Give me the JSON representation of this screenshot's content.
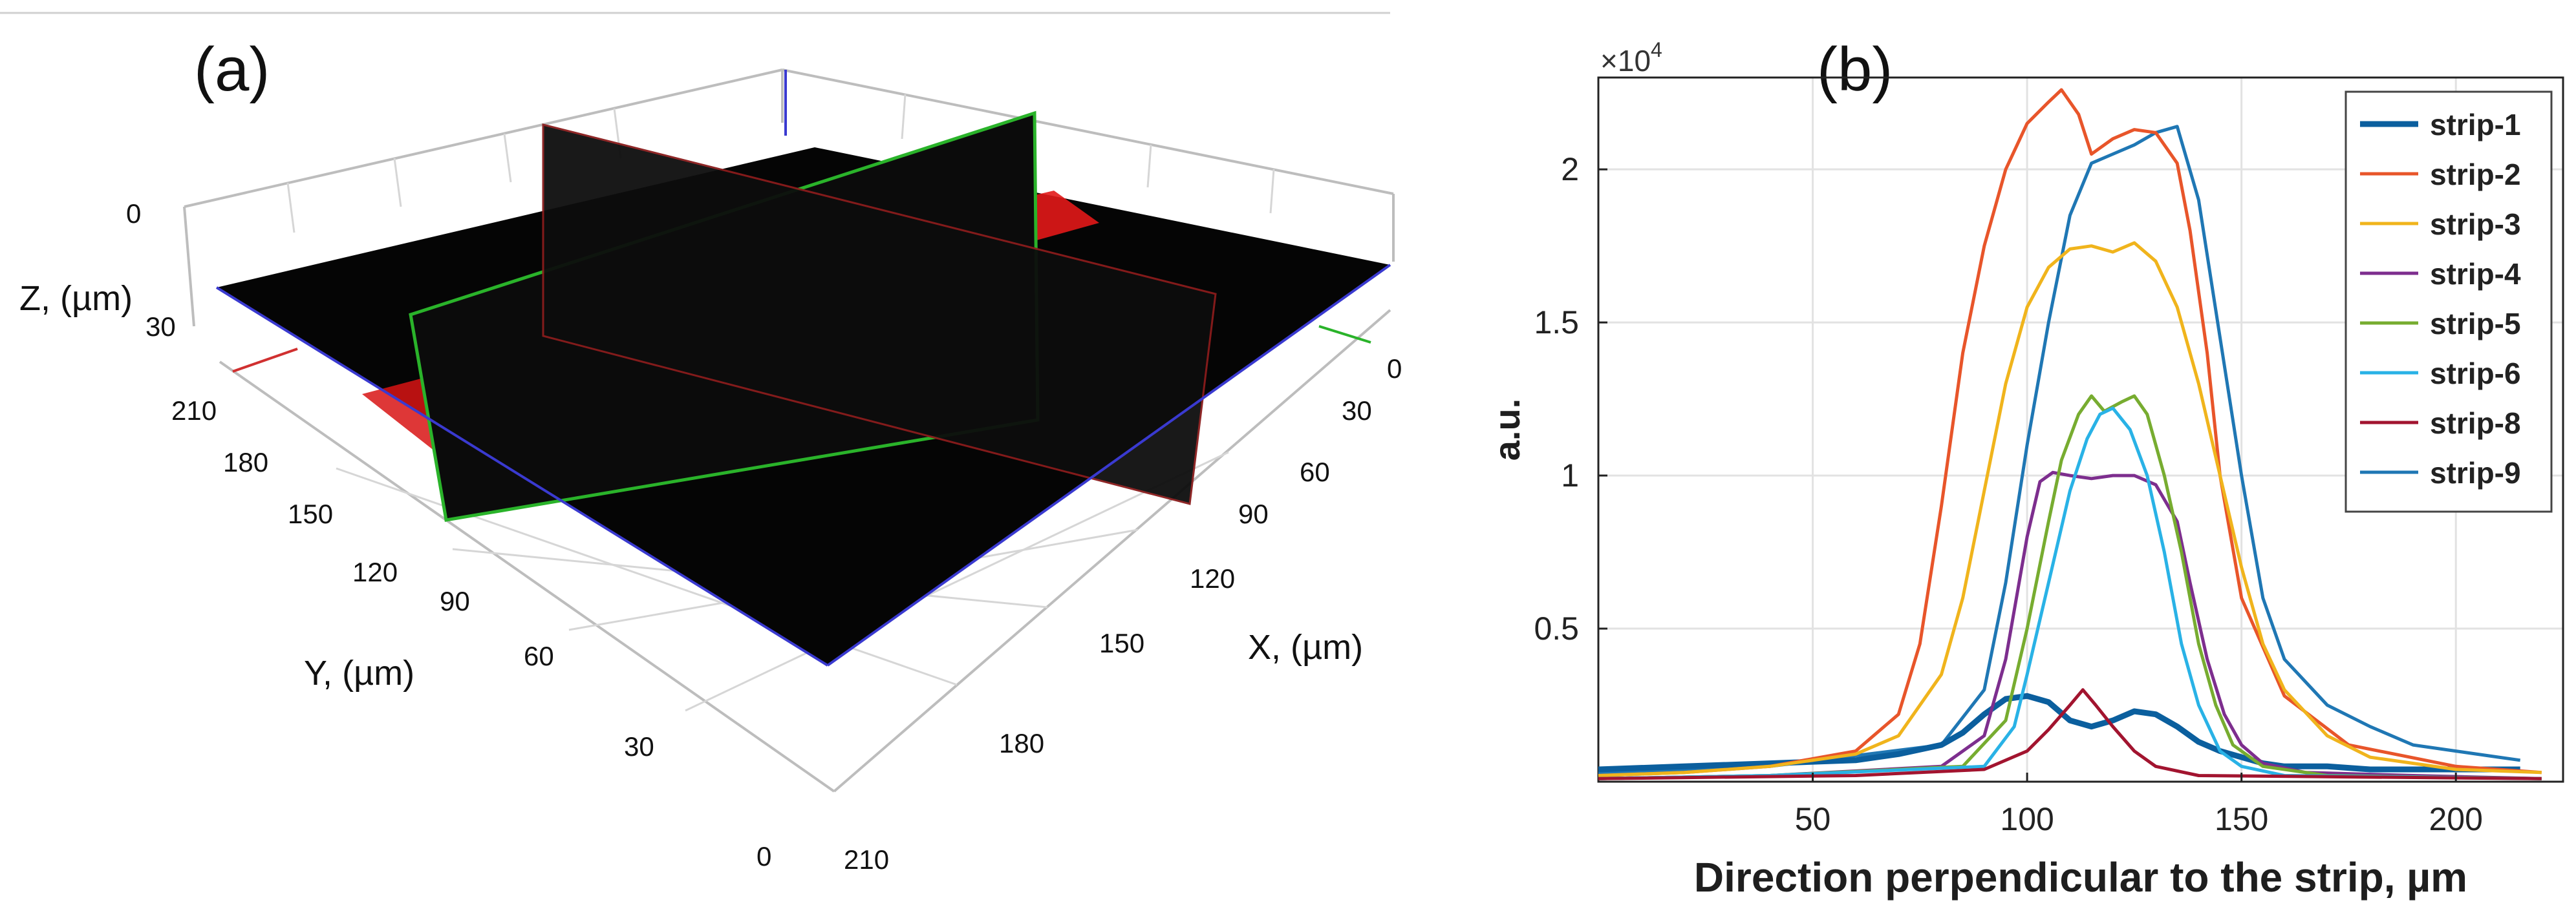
{
  "panel_a": {
    "label": "(a)",
    "z_label": "Z, (µm)",
    "y_label": "Y, (µm)",
    "x_label": "X, (µm)",
    "z_ticks": [
      "0",
      "30"
    ],
    "y_ticks": [
      "210",
      "180",
      "150",
      "120",
      "90",
      "60",
      "30",
      "0"
    ],
    "x_ticks": [
      "0",
      "30",
      "60",
      "90",
      "120",
      "150",
      "180",
      "210"
    ]
  },
  "chart_data": {
    "type": "line",
    "panel_label": "(b)",
    "title": "",
    "xlabel": "Direction perpendicular to the strip, µm",
    "ylabel": "a.u.",
    "exponent_label": "×10",
    "exponent_power": "4",
    "xlim": [
      0,
      225
    ],
    "ylim": [
      0,
      2.3
    ],
    "x_ticks": [
      50,
      100,
      150,
      200
    ],
    "y_ticks": [
      0.5,
      1,
      1.5,
      2
    ],
    "x_tick_labels": [
      "50",
      "100",
      "150",
      "200"
    ],
    "y_tick_labels": [
      "0.5",
      "1",
      "1.5",
      "2"
    ],
    "grid": true,
    "legend_position": "top-right",
    "series": [
      {
        "name": "strip-1",
        "color": "#0b5f9e",
        "width": 9,
        "x": [
          0,
          20,
          40,
          60,
          70,
          80,
          85,
          90,
          95,
          100,
          105,
          110,
          115,
          120,
          125,
          130,
          135,
          140,
          145,
          150,
          155,
          160,
          170,
          180,
          200,
          215
        ],
        "y": [
          0.04,
          0.05,
          0.06,
          0.07,
          0.09,
          0.12,
          0.16,
          0.22,
          0.27,
          0.28,
          0.26,
          0.2,
          0.18,
          0.2,
          0.23,
          0.22,
          0.18,
          0.13,
          0.1,
          0.08,
          0.06,
          0.05,
          0.05,
          0.04,
          0.04,
          0.04
        ]
      },
      {
        "name": "strip-2",
        "color": "#e8552a",
        "width": 5,
        "x": [
          0,
          20,
          40,
          60,
          70,
          75,
          80,
          85,
          90,
          95,
          100,
          105,
          108,
          112,
          115,
          120,
          125,
          130,
          135,
          138,
          142,
          145,
          150,
          160,
          175,
          200,
          220
        ],
        "y": [
          0.02,
          0.03,
          0.05,
          0.1,
          0.22,
          0.45,
          0.9,
          1.4,
          1.75,
          2.0,
          2.15,
          2.22,
          2.26,
          2.18,
          2.05,
          2.1,
          2.13,
          2.12,
          2.02,
          1.8,
          1.4,
          1.0,
          0.6,
          0.28,
          0.12,
          0.05,
          0.03
        ]
      },
      {
        "name": "strip-3",
        "color": "#f0b41c",
        "width": 5,
        "x": [
          0,
          20,
          40,
          60,
          70,
          80,
          85,
          90,
          95,
          100,
          105,
          110,
          115,
          120,
          125,
          130,
          135,
          140,
          145,
          150,
          155,
          160,
          170,
          180,
          200,
          220
        ],
        "y": [
          0.02,
          0.03,
          0.05,
          0.09,
          0.15,
          0.35,
          0.6,
          0.95,
          1.3,
          1.55,
          1.68,
          1.74,
          1.75,
          1.73,
          1.76,
          1.7,
          1.55,
          1.3,
          1.0,
          0.7,
          0.45,
          0.3,
          0.15,
          0.08,
          0.04,
          0.03
        ]
      },
      {
        "name": "strip-4",
        "color": "#7d2e8e",
        "width": 5,
        "x": [
          0,
          40,
          80,
          90,
          95,
          100,
          103,
          106,
          110,
          115,
          120,
          125,
          130,
          135,
          138,
          142,
          146,
          150,
          155,
          165,
          190,
          220
        ],
        "y": [
          0.01,
          0.02,
          0.05,
          0.15,
          0.4,
          0.8,
          0.98,
          1.01,
          1.0,
          0.99,
          1.0,
          1.0,
          0.97,
          0.85,
          0.65,
          0.4,
          0.22,
          0.12,
          0.06,
          0.03,
          0.02,
          0.01
        ]
      },
      {
        "name": "strip-5",
        "color": "#77ac30",
        "width": 5,
        "x": [
          0,
          40,
          85,
          95,
          100,
          105,
          108,
          112,
          115,
          118,
          122,
          125,
          128,
          132,
          136,
          140,
          144,
          148,
          155,
          170,
          220
        ],
        "y": [
          0.01,
          0.02,
          0.05,
          0.2,
          0.5,
          0.85,
          1.05,
          1.2,
          1.26,
          1.21,
          1.24,
          1.26,
          1.2,
          1.0,
          0.75,
          0.45,
          0.25,
          0.12,
          0.05,
          0.02,
          0.01
        ]
      },
      {
        "name": "strip-6",
        "color": "#29b2e6",
        "width": 5,
        "x": [
          0,
          40,
          90,
          97,
          100,
          105,
          110,
          114,
          117,
          120,
          124,
          128,
          132,
          136,
          140,
          145,
          150,
          160,
          220
        ],
        "y": [
          0.01,
          0.02,
          0.05,
          0.18,
          0.35,
          0.65,
          0.95,
          1.12,
          1.2,
          1.22,
          1.15,
          1.0,
          0.75,
          0.45,
          0.25,
          0.1,
          0.05,
          0.02,
          0.01
        ]
      },
      {
        "name": "strip-8",
        "color": "#a2142f",
        "width": 5,
        "x": [
          0,
          60,
          90,
          100,
          105,
          110,
          113,
          116,
          120,
          125,
          130,
          140,
          220
        ],
        "y": [
          0.01,
          0.02,
          0.04,
          0.1,
          0.17,
          0.25,
          0.3,
          0.25,
          0.18,
          0.1,
          0.05,
          0.02,
          0.01
        ]
      },
      {
        "name": "strip-9",
        "color": "#1f77b4",
        "width": 5,
        "x": [
          0,
          40,
          80,
          90,
          95,
          100,
          105,
          110,
          115,
          120,
          125,
          130,
          135,
          140,
          145,
          150,
          155,
          160,
          170,
          180,
          190,
          200,
          210,
          215
        ],
        "y": [
          0.03,
          0.05,
          0.12,
          0.3,
          0.65,
          1.1,
          1.5,
          1.85,
          2.02,
          2.05,
          2.08,
          2.12,
          2.14,
          1.9,
          1.45,
          1.0,
          0.6,
          0.4,
          0.25,
          0.18,
          0.12,
          0.1,
          0.08,
          0.07
        ]
      }
    ]
  }
}
